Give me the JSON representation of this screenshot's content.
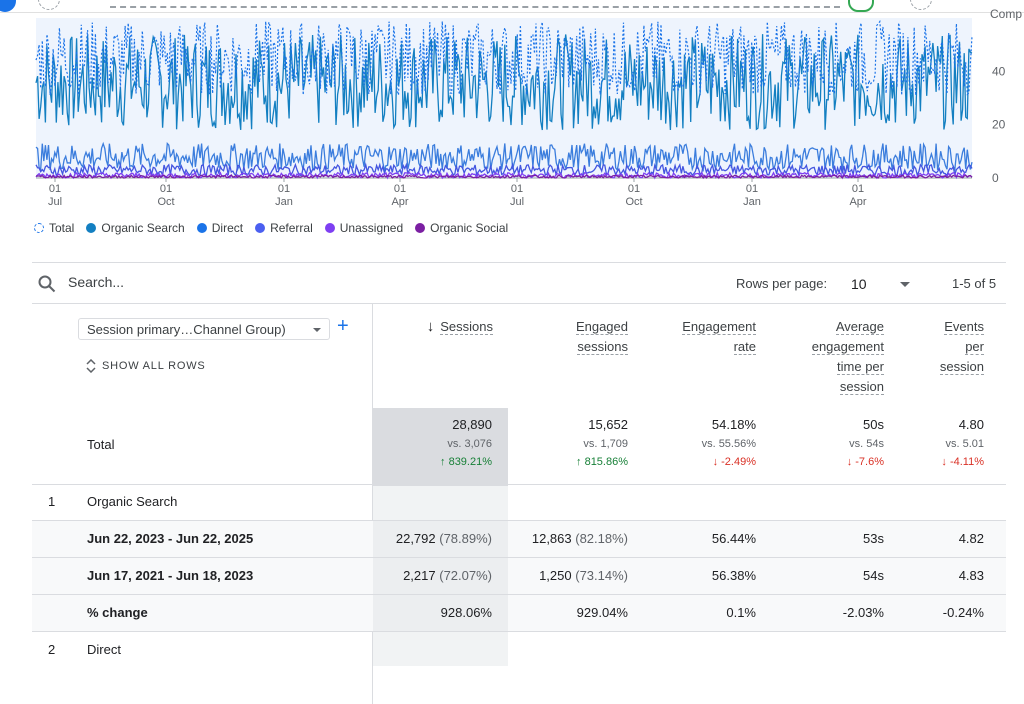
{
  "header": {
    "comp_label": "Comp"
  },
  "chart_data": {
    "type": "line",
    "title": "",
    "y_ticks": [
      "40",
      "20",
      "0"
    ],
    "ylim": [
      0,
      60
    ],
    "x_tick_labels": [
      {
        "day": "01",
        "month": "Jul"
      },
      {
        "day": "01",
        "month": "Oct"
      },
      {
        "day": "01",
        "month": "Jan"
      },
      {
        "day": "01",
        "month": "Apr"
      },
      {
        "day": "01",
        "month": "Jul"
      },
      {
        "day": "01",
        "month": "Oct"
      },
      {
        "day": "01",
        "month": "Jan"
      },
      {
        "day": "01",
        "month": "Apr"
      }
    ],
    "series": [
      {
        "name": "Total",
        "color": "#1a73e8",
        "style": "dashed",
        "level": 45,
        "amp": 14
      },
      {
        "name": "Organic Search",
        "color": "#1a73e8",
        "style": "solid",
        "level": 36,
        "amp": 18
      },
      {
        "name": "Direct",
        "color": "#1a73e8",
        "style": "solid",
        "level": 8,
        "amp": 5
      },
      {
        "name": "Referral",
        "color": "#4355e0",
        "style": "solid",
        "level": 3,
        "amp": 2
      },
      {
        "name": "Unassigned",
        "color": "#7e3ff2",
        "style": "solid",
        "level": 1,
        "amp": 1
      },
      {
        "name": "Organic Social",
        "color": "#7b1fa2",
        "style": "solid",
        "level": 0.5,
        "amp": 0.5
      }
    ]
  },
  "legend": [
    {
      "label": "Total",
      "color": "#1a73e8",
      "dashed": true
    },
    {
      "label": "Organic Search",
      "color": "#137fc1",
      "dashed": false
    },
    {
      "label": "Direct",
      "color": "#1a73e8",
      "dashed": false
    },
    {
      "label": "Referral",
      "color": "#4b5ff0",
      "dashed": false
    },
    {
      "label": "Unassigned",
      "color": "#7e3ff2",
      "dashed": false
    },
    {
      "label": "Organic Social",
      "color": "#7b1fa2",
      "dashed": false
    }
  ],
  "table": {
    "search_placeholder": "Search...",
    "rows_per_page_label": "Rows per page:",
    "rows_per_page_value": "10",
    "pager": "1-5 of 5",
    "dimension_selector": "Session primary…Channel Group)",
    "show_all_rows": "SHOW ALL ROWS",
    "columns": {
      "sessions": "Sessions",
      "engaged_1": "Engaged",
      "engaged_2": "sessions",
      "engrate_1": "Engagement",
      "engrate_2": "rate",
      "avg_1": "Average",
      "avg_2": "engagement",
      "avg_3": "time per",
      "avg_4": "session",
      "events_1": "Events",
      "events_2": "per",
      "events_3": "session"
    },
    "total": {
      "label": "Total",
      "sessions": "28,890",
      "sessions_vs": "vs. 3,076",
      "sessions_chg": "↑ 839.21%",
      "engaged": "15,652",
      "engaged_vs": "vs. 1,709",
      "engaged_chg": "↑ 815.86%",
      "engrate": "54.18%",
      "engrate_vs": "vs. 55.56%",
      "engrate_chg": "↓ -2.49%",
      "avg": "50s",
      "avg_vs": "vs. 54s",
      "avg_chg": "↓ -7.6%",
      "events": "4.80",
      "events_vs": "vs. 5.01",
      "events_chg": "↓ -4.11%"
    },
    "row1": {
      "index": "1",
      "name": "Organic Search",
      "r1_label": "Jun 22, 2023 - Jun 22, 2025",
      "r1_sessions": "22,792",
      "r1_sessions_pct": "(78.89%)",
      "r1_engaged": "12,863",
      "r1_engaged_pct": "(82.18%)",
      "r1_engrate": "56.44%",
      "r1_avg": "53s",
      "r1_events": "4.82",
      "r2_label": "Jun 17, 2021 - Jun 18, 2023",
      "r2_sessions": "2,217",
      "r2_sessions_pct": "(72.07%)",
      "r2_engaged": "1,250",
      "r2_engaged_pct": "(73.14%)",
      "r2_engrate": "56.38%",
      "r2_avg": "54s",
      "r2_events": "4.83",
      "r3_label": "% change",
      "r3_sessions": "928.06%",
      "r3_engaged": "929.04%",
      "r3_engrate": "0.1%",
      "r3_avg": "-2.03%",
      "r3_events": "-0.24%"
    },
    "row2": {
      "index": "2",
      "name": "Direct"
    }
  }
}
